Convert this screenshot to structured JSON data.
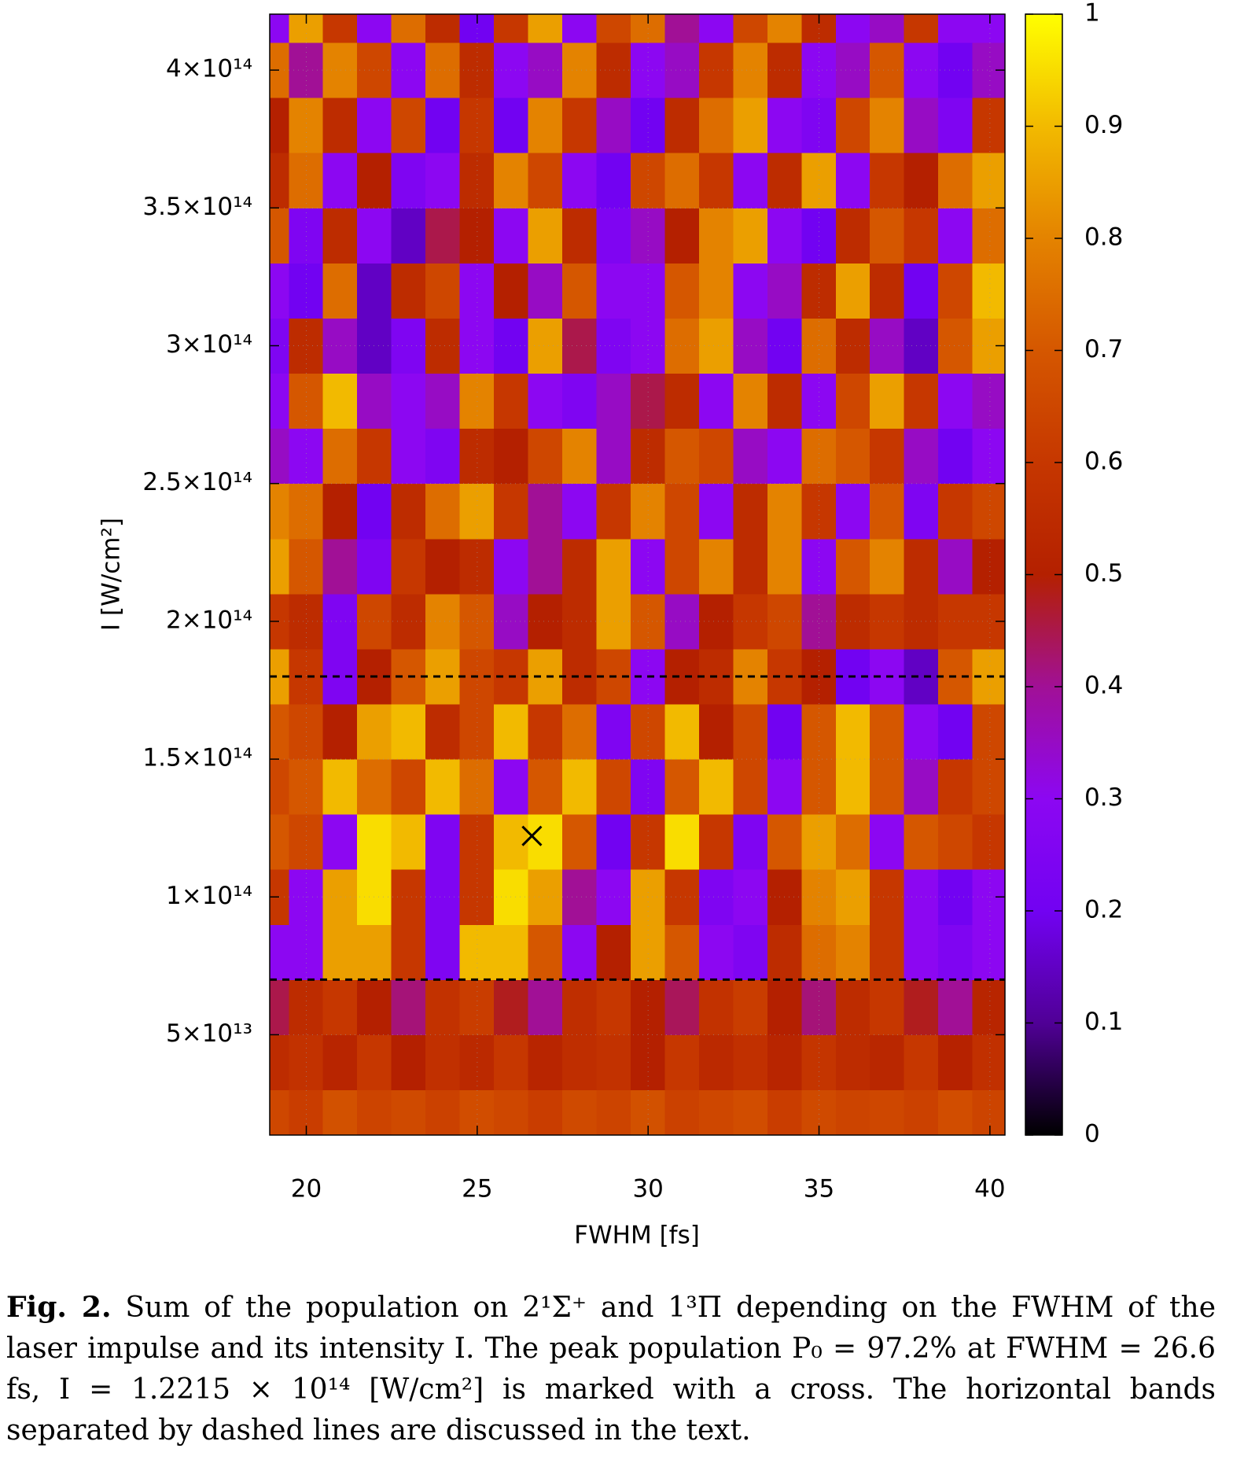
{
  "chart_data": {
    "type": "heatmap",
    "xlabel": "FWHM [fs]",
    "ylabel": "I [W/cm²]",
    "x": [
      19,
      20,
      21,
      22,
      23,
      24,
      25,
      26,
      27,
      28,
      29,
      30,
      31,
      32,
      33,
      34,
      35,
      36,
      37,
      38,
      39,
      40
    ],
    "y": [
      20000000000000.0,
      40000000000000.0,
      60000000000000.0,
      80000000000000.0,
      100000000000000.0,
      120000000000000.0,
      140000000000000.0,
      160000000000000.0,
      180000000000000.0,
      200000000000000.0,
      220000000000000.0,
      240000000000000.0,
      260000000000000.0,
      280000000000000.0,
      300000000000000.0,
      320000000000000.0,
      340000000000000.0,
      360000000000000.0,
      380000000000000.0,
      400000000000000.0,
      420000000000000.0
    ],
    "z": [
      [
        0.65,
        0.62,
        0.68,
        0.64,
        0.66,
        0.63,
        0.67,
        0.65,
        0.62,
        0.66,
        0.64,
        0.68,
        0.63,
        0.65,
        0.67,
        0.62,
        0.66,
        0.64,
        0.65,
        0.63,
        0.67,
        0.64
      ],
      [
        0.55,
        0.58,
        0.52,
        0.6,
        0.5,
        0.57,
        0.54,
        0.6,
        0.52,
        0.56,
        0.58,
        0.5,
        0.6,
        0.54,
        0.57,
        0.52,
        0.59,
        0.55,
        0.53,
        0.6,
        0.51,
        0.57
      ],
      [
        0.45,
        0.55,
        0.6,
        0.5,
        0.42,
        0.58,
        0.62,
        0.48,
        0.4,
        0.56,
        0.6,
        0.5,
        0.44,
        0.58,
        0.62,
        0.5,
        0.42,
        0.55,
        0.6,
        0.48,
        0.4,
        0.52
      ],
      [
        0.3,
        0.3,
        0.85,
        0.85,
        0.6,
        0.25,
        0.9,
        0.9,
        0.7,
        0.3,
        0.5,
        0.85,
        0.7,
        0.3,
        0.25,
        0.55,
        0.75,
        0.8,
        0.6,
        0.3,
        0.25,
        0.3
      ],
      [
        0.6,
        0.3,
        0.85,
        0.95,
        0.6,
        0.25,
        0.6,
        0.95,
        0.85,
        0.4,
        0.3,
        0.85,
        0.6,
        0.25,
        0.3,
        0.5,
        0.8,
        0.85,
        0.6,
        0.3,
        0.2,
        0.3
      ],
      [
        0.7,
        0.65,
        0.3,
        0.95,
        0.9,
        0.25,
        0.6,
        0.9,
        0.95,
        0.7,
        0.2,
        0.6,
        0.95,
        0.6,
        0.25,
        0.7,
        0.85,
        0.75,
        0.3,
        0.7,
        0.65,
        0.6
      ],
      [
        0.65,
        0.7,
        0.9,
        0.75,
        0.65,
        0.9,
        0.75,
        0.3,
        0.7,
        0.9,
        0.65,
        0.25,
        0.7,
        0.9,
        0.65,
        0.3,
        0.7,
        0.9,
        0.7,
        0.35,
        0.6,
        0.65
      ],
      [
        0.7,
        0.65,
        0.5,
        0.85,
        0.9,
        0.55,
        0.65,
        0.9,
        0.6,
        0.75,
        0.25,
        0.65,
        0.9,
        0.5,
        0.65,
        0.2,
        0.7,
        0.9,
        0.7,
        0.3,
        0.2,
        0.65
      ],
      [
        0.85,
        0.6,
        0.25,
        0.5,
        0.7,
        0.85,
        0.65,
        0.6,
        0.85,
        0.55,
        0.65,
        0.3,
        0.5,
        0.55,
        0.8,
        0.6,
        0.5,
        0.2,
        0.3,
        0.15,
        0.7,
        0.85
      ],
      [
        0.6,
        0.55,
        0.25,
        0.65,
        0.55,
        0.8,
        0.7,
        0.35,
        0.5,
        0.55,
        0.85,
        0.7,
        0.35,
        0.5,
        0.6,
        0.65,
        0.4,
        0.55,
        0.6,
        0.55,
        0.6,
        0.6
      ],
      [
        0.85,
        0.7,
        0.4,
        0.25,
        0.6,
        0.5,
        0.55,
        0.3,
        0.4,
        0.55,
        0.85,
        0.3,
        0.65,
        0.8,
        0.55,
        0.8,
        0.3,
        0.7,
        0.8,
        0.55,
        0.35,
        0.5
      ],
      [
        0.8,
        0.75,
        0.5,
        0.2,
        0.55,
        0.75,
        0.85,
        0.6,
        0.4,
        0.3,
        0.6,
        0.8,
        0.65,
        0.3,
        0.55,
        0.8,
        0.6,
        0.3,
        0.7,
        0.25,
        0.6,
        0.65
      ],
      [
        0.35,
        0.3,
        0.75,
        0.6,
        0.3,
        0.25,
        0.55,
        0.5,
        0.65,
        0.8,
        0.35,
        0.55,
        0.7,
        0.65,
        0.35,
        0.3,
        0.75,
        0.7,
        0.6,
        0.35,
        0.2,
        0.3
      ],
      [
        0.3,
        0.7,
        0.9,
        0.35,
        0.3,
        0.35,
        0.8,
        0.6,
        0.3,
        0.25,
        0.35,
        0.45,
        0.55,
        0.3,
        0.8,
        0.55,
        0.3,
        0.65,
        0.85,
        0.6,
        0.3,
        0.35
      ],
      [
        0.25,
        0.55,
        0.35,
        0.15,
        0.25,
        0.55,
        0.3,
        0.2,
        0.85,
        0.45,
        0.25,
        0.3,
        0.75,
        0.85,
        0.35,
        0.2,
        0.75,
        0.55,
        0.35,
        0.15,
        0.7,
        0.85
      ],
      [
        0.3,
        0.2,
        0.75,
        0.15,
        0.55,
        0.65,
        0.3,
        0.5,
        0.35,
        0.7,
        0.3,
        0.3,
        0.7,
        0.8,
        0.3,
        0.35,
        0.55,
        0.85,
        0.55,
        0.2,
        0.65,
        0.9
      ],
      [
        0.7,
        0.25,
        0.55,
        0.3,
        0.15,
        0.45,
        0.5,
        0.3,
        0.85,
        0.55,
        0.25,
        0.35,
        0.5,
        0.8,
        0.85,
        0.3,
        0.2,
        0.55,
        0.7,
        0.6,
        0.3,
        0.75
      ],
      [
        0.55,
        0.75,
        0.3,
        0.5,
        0.25,
        0.3,
        0.55,
        0.8,
        0.65,
        0.3,
        0.2,
        0.65,
        0.75,
        0.6,
        0.3,
        0.55,
        0.85,
        0.3,
        0.6,
        0.5,
        0.75,
        0.85
      ],
      [
        0.5,
        0.8,
        0.55,
        0.3,
        0.65,
        0.2,
        0.6,
        0.2,
        0.8,
        0.6,
        0.35,
        0.2,
        0.55,
        0.75,
        0.85,
        0.3,
        0.25,
        0.65,
        0.8,
        0.35,
        0.25,
        0.6
      ],
      [
        0.75,
        0.4,
        0.8,
        0.65,
        0.3,
        0.75,
        0.55,
        0.3,
        0.35,
        0.8,
        0.55,
        0.3,
        0.35,
        0.6,
        0.8,
        0.55,
        0.3,
        0.35,
        0.7,
        0.3,
        0.2,
        0.35
      ],
      [
        0.3,
        0.85,
        0.6,
        0.3,
        0.75,
        0.55,
        0.2,
        0.6,
        0.85,
        0.3,
        0.65,
        0.75,
        0.4,
        0.3,
        0.65,
        0.8,
        0.55,
        0.3,
        0.35,
        0.6,
        0.3,
        0.3
      ]
    ],
    "xlim": [
      18.93,
      40.44
    ],
    "ylim": [
      13600000000000.0,
      420300000000000.0
    ],
    "xticks": [
      20,
      25,
      30,
      35,
      40
    ],
    "yticks": [
      {
        "value": 50000000000000.0,
        "label": "5×10¹³"
      },
      {
        "value": 100000000000000.0,
        "label": "1×10¹⁴"
      },
      {
        "value": 150000000000000.0,
        "label": "1.5×10¹⁴"
      },
      {
        "value": 200000000000000.0,
        "label": "2×10¹⁴"
      },
      {
        "value": 250000000000000.0,
        "label": "2.5×10¹⁴"
      },
      {
        "value": 300000000000000.0,
        "label": "3×10¹⁴"
      },
      {
        "value": 350000000000000.0,
        "label": "3.5×10¹⁴"
      },
      {
        "value": 400000000000000.0,
        "label": "4×10¹⁴"
      }
    ],
    "cblim": [
      0,
      1
    ],
    "cbticks": [
      0,
      0.1,
      0.2,
      0.3,
      0.4,
      0.5,
      0.6,
      0.7,
      0.8,
      0.9,
      1
    ],
    "colormap": [
      "#000000",
      "#500096",
      "#7202f2",
      "#8c07f2",
      "#a11096",
      "#b42000",
      "#c63700",
      "#d55700",
      "#e48300",
      "#f2ba00",
      "#ffff00"
    ],
    "grid": true,
    "dashed_lines": [
      180000000000000.0,
      70000000000000.0
    ],
    "marker": {
      "x": 26.6,
      "y": 122150000000000.0
    }
  },
  "caption": {
    "label": "Fig. 2.",
    "text": "Sum of the population on 2¹Σ⁺ and 1³Π depending on the FWHM of the laser impulse and its intensity I. The peak population P₀ = 97.2% at FWHM = 26.6 fs, I = 1.2215 × 10¹⁴ [W/cm²] is marked with a cross. The horizontal bands separated by dashed lines are discussed in the text."
  }
}
